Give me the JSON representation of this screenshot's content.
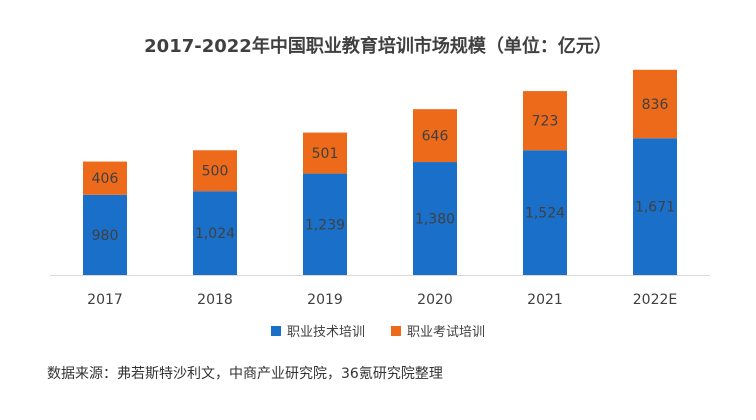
{
  "chart_data": {
    "type": "bar",
    "stacked": true,
    "title": "2017-2022年中国职业教育培训市场规模（单位：亿元）",
    "categories": [
      "2017",
      "2018",
      "2019",
      "2020",
      "2021",
      "2022E"
    ],
    "series": [
      {
        "name": "职业技术培训",
        "values": [
          980,
          1024,
          1239,
          1380,
          1524,
          1671
        ],
        "labels": [
          "980",
          "1,024",
          "1,239",
          "1,380",
          "1,524",
          "1,671"
        ],
        "color": "#1a6fc9"
      },
      {
        "name": "职业考试培训",
        "values": [
          406,
          500,
          501,
          646,
          723,
          836
        ],
        "labels": [
          "406",
          "500",
          "501",
          "646",
          "723",
          "836"
        ],
        "color": "#ed6a1a"
      }
    ],
    "ylim": [
      0,
      2700
    ],
    "grid": false,
    "legend_position": "bottom"
  },
  "source_note": "数据来源：弗若斯特沙利文，中商产业研究院，36氪研究院整理"
}
